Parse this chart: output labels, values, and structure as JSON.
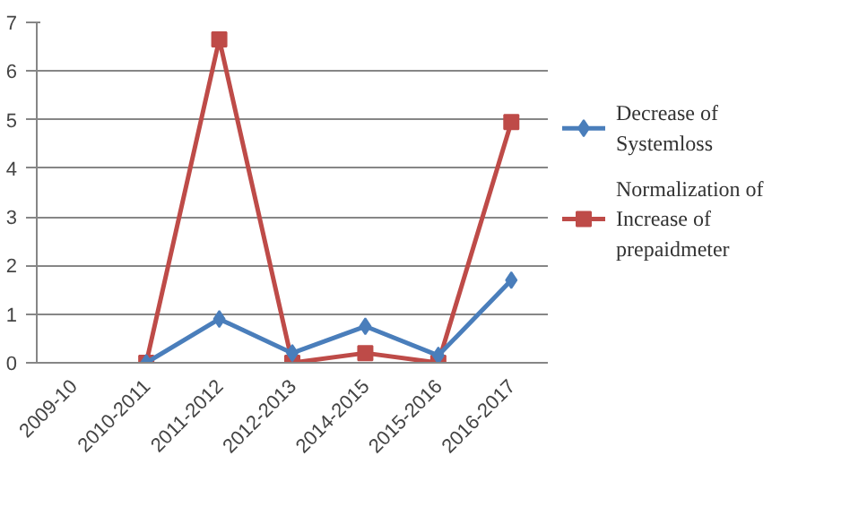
{
  "chart_data": {
    "type": "line",
    "categories": [
      "2009-10",
      "2010-2011",
      "2011-2012",
      "2012-2013",
      "2014-2015",
      "2015-2016",
      "2016-2017"
    ],
    "series": [
      {
        "name": "Decrease of Systemloss",
        "color": "#4a7ebb",
        "marker": "diamond",
        "values": [
          null,
          0,
          0.9,
          0.2,
          0.75,
          0.15,
          1.7
        ]
      },
      {
        "name": "Normalization of Increase of prepaidmeter",
        "color": "#be4b48",
        "marker": "square",
        "values": [
          null,
          0,
          6.65,
          0,
          0.2,
          0,
          4.95
        ]
      }
    ],
    "ylim": [
      0,
      7
    ],
    "yticks": [
      0,
      1,
      2,
      3,
      4,
      5,
      6,
      7
    ],
    "grid": "y",
    "legend": "right",
    "line_style": "solid"
  }
}
